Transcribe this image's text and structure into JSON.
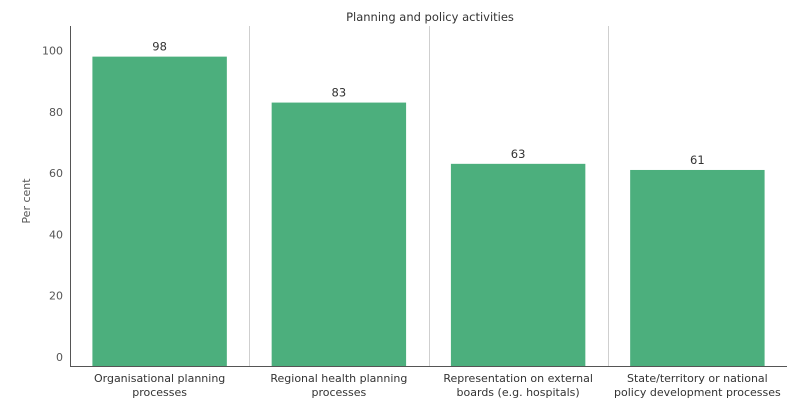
{
  "chart_data": {
    "type": "bar",
    "title": "Planning and policy activities",
    "ylabel": "Per cent",
    "xlabel": "",
    "ylim": [
      -3,
      108
    ],
    "yticks": [
      0,
      20,
      40,
      60,
      80,
      100
    ],
    "categories": [
      [
        "Organisational planning",
        "processes"
      ],
      [
        "Regional health planning",
        "processes"
      ],
      [
        "Representation on external",
        "boards (e.g. hospitals)"
      ],
      [
        "State/territory or national",
        "policy development processes"
      ]
    ],
    "values": [
      98,
      83,
      63,
      61
    ],
    "bar_color": "#4caf7d",
    "grid": false,
    "legend": "none"
  }
}
